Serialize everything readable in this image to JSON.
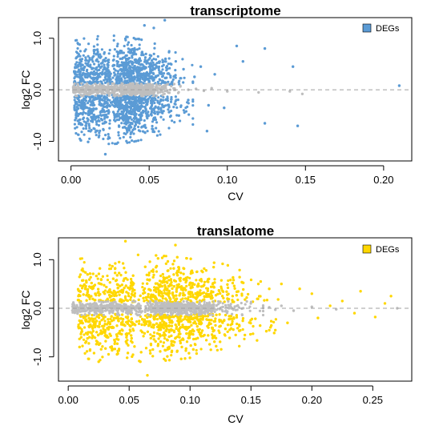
{
  "colors": {
    "transcriptome_deg": "#5b9bd5",
    "translatome_deg": "#ffd700",
    "non_deg": "#bebebe",
    "zero_line": "#a0a0a0"
  },
  "chart_data": [
    {
      "type": "scatter",
      "title": "transcriptome",
      "xlabel": "CV",
      "ylabel": "log2 FC",
      "xlim": [
        -0.008,
        0.218
      ],
      "ylim": [
        -1.38,
        1.4
      ],
      "xticks": [
        0.0,
        0.05,
        0.1,
        0.15,
        0.2
      ],
      "xtick_labels": [
        "0.00",
        "0.05",
        "0.10",
        "0.15",
        "0.20"
      ],
      "yticks": [
        -1.0,
        0.0,
        1.0
      ],
      "ytick_labels": [
        "-1.0",
        "0.0",
        "1.0"
      ],
      "y_label_rotation": "vertical",
      "reference_line": {
        "y": 0,
        "style": "dashed"
      },
      "legend": {
        "placement": "top-right",
        "entries": [
          "DEGs"
        ]
      },
      "deg_color": "#5b9bd5",
      "non_deg_color": "#bebebe",
      "series": [
        {
          "name": "DEGs",
          "cloud": {
            "count": 1700,
            "x_range": [
              0.002,
              0.078
            ],
            "x_peak": 0.025,
            "abs_y_min": 0.1,
            "abs_y_max": 1.05
          }
        },
        {
          "name": "",
          "cloud": {
            "count": 700,
            "x_range": [
              0.001,
              0.07
            ],
            "x_peak": 0.03,
            "abs_y_max": 0.12
          }
        }
      ],
      "outliers_deg": [
        [
          0.022,
          -1.25
        ],
        [
          0.06,
          1.35
        ],
        [
          0.047,
          1.25
        ],
        [
          0.053,
          1.2
        ],
        [
          0.087,
          -0.8
        ],
        [
          0.106,
          0.85
        ],
        [
          0.11,
          0.55
        ],
        [
          0.124,
          0.8
        ],
        [
          0.124,
          -0.65
        ],
        [
          0.142,
          0.45
        ],
        [
          0.145,
          -0.7
        ],
        [
          0.21,
          0.08
        ],
        [
          0.092,
          0.3
        ],
        [
          0.098,
          -0.35
        ],
        [
          0.083,
          0.45
        ],
        [
          0.088,
          -0.3
        ],
        [
          0.079,
          0.25
        ],
        [
          0.075,
          -0.2
        ],
        [
          0.072,
          0.4
        ],
        [
          0.069,
          -0.5
        ]
      ],
      "outliers_non_deg": [
        [
          0.1,
          -0.03
        ],
        [
          0.12,
          -0.05
        ],
        [
          0.14,
          -0.03
        ],
        [
          0.148,
          -0.08
        ],
        [
          0.09,
          0.03
        ],
        [
          0.085,
          -0.02
        ],
        [
          0.08,
          0.02
        ],
        [
          0.075,
          0.0
        ]
      ]
    },
    {
      "type": "scatter",
      "title": "translatome",
      "xlabel": "CV",
      "ylabel": "log2 FC",
      "xlim": [
        -0.008,
        0.282
      ],
      "ylim": [
        -1.5,
        1.45
      ],
      "xticks": [
        0.0,
        0.05,
        0.1,
        0.15,
        0.2,
        0.25
      ],
      "xtick_labels": [
        "0.00",
        "0.05",
        "0.10",
        "0.15",
        "0.20",
        "0.25"
      ],
      "yticks": [
        -1.0,
        0.0,
        1.0
      ],
      "ytick_labels": [
        "-1.0",
        "0.0",
        "1.0"
      ],
      "y_label_rotation": "vertical",
      "reference_line": {
        "y": 0,
        "style": "dashed"
      },
      "legend": {
        "placement": "top-right",
        "entries": [
          "DEGs"
        ]
      },
      "deg_color": "#ffd700",
      "non_deg_color": "#bebebe",
      "series": [
        {
          "name": "DEGs",
          "cloud": {
            "count": 2300,
            "x_range": [
              0.008,
              0.175
            ],
            "x_peak": 0.055,
            "abs_y_min": 0.12,
            "abs_y_max": 1.1
          }
        },
        {
          "name": "",
          "cloud": {
            "count": 900,
            "x_range": [
              0.003,
              0.16
            ],
            "x_peak": 0.06,
            "abs_y_max": 0.14
          }
        }
      ],
      "outliers_deg": [
        [
          0.065,
          -1.38
        ],
        [
          0.047,
          1.38
        ],
        [
          0.088,
          1.3
        ],
        [
          0.025,
          -1.1
        ],
        [
          0.24,
          0.35
        ],
        [
          0.26,
          0.1
        ],
        [
          0.265,
          0.25
        ],
        [
          0.252,
          -0.18
        ],
        [
          0.2,
          0.3
        ],
        [
          0.19,
          0.4
        ],
        [
          0.18,
          -0.3
        ],
        [
          0.175,
          0.5
        ],
        [
          0.17,
          -0.45
        ],
        [
          0.165,
          0.4
        ],
        [
          0.158,
          0.55
        ],
        [
          0.145,
          -0.55
        ],
        [
          0.225,
          0.15
        ],
        [
          0.235,
          -0.1
        ],
        [
          0.205,
          -0.2
        ],
        [
          0.215,
          0.05
        ]
      ],
      "outliers_non_deg": [
        [
          0.27,
          0.0
        ],
        [
          0.22,
          -0.02
        ],
        [
          0.2,
          0.03
        ],
        [
          0.185,
          -0.05
        ],
        [
          0.175,
          0.05
        ],
        [
          0.17,
          -0.03
        ],
        [
          0.165,
          0.02
        ]
      ]
    }
  ]
}
